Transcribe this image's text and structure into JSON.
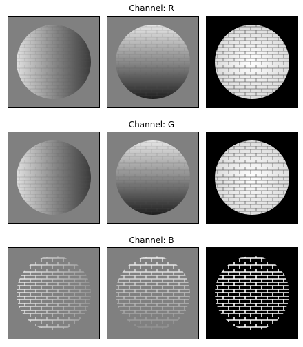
{
  "figure": {
    "rows": [
      {
        "title": "Channel: R",
        "channel": "R"
      },
      {
        "title": "Channel: G",
        "channel": "G"
      },
      {
        "title": "Channel: B",
        "channel": "B"
      }
    ],
    "columns": [
      "shading-horizontal",
      "shading-vertical",
      "albedo"
    ],
    "colors": {
      "panel_background": "#808080",
      "albedo_background": "#000000",
      "sphere_light": "#f2f2f2",
      "sphere_dark": "#1a1a1a",
      "mortar_line": "#555555",
      "mortar_bright": "#ffffff",
      "frame": "#000000"
    }
  }
}
